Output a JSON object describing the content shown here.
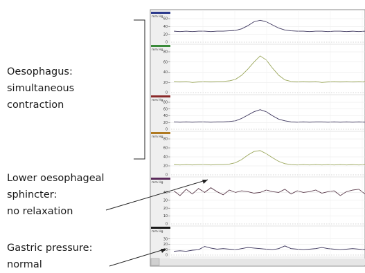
{
  "annotations": {
    "oesophagus": [
      "Oesophagus:",
      "simultaneous",
      "contraction"
    ],
    "les": [
      "Lower oesophageal",
      "sphincter:",
      "no relaxation"
    ],
    "gastric": [
      "Gastric pressure:",
      "normal"
    ]
  },
  "chart_data": {
    "type": "line",
    "title": "",
    "xlabel": "",
    "ylabel": "",
    "unit": "mm Hg",
    "panels": [
      {
        "name": "",
        "color": "#2c3a8c",
        "trace_color": "#39325a",
        "ylim": [
          0,
          60
        ],
        "ticks": [
          20,
          40,
          60
        ],
        "y": [
          28,
          27,
          28,
          27,
          28,
          28,
          27,
          28,
          28,
          29,
          30,
          34,
          42,
          52,
          56,
          52,
          44,
          36,
          31,
          29,
          28,
          28,
          27,
          28,
          28,
          27,
          28,
          28,
          27,
          28,
          27,
          28
        ]
      },
      {
        "name": "",
        "color": "#3a8a3a",
        "trace_color": "#9aa65a",
        "ylim": [
          0,
          80
        ],
        "ticks": [
          20,
          40,
          60,
          80
        ],
        "y": [
          22,
          21,
          22,
          20,
          21,
          22,
          21,
          22,
          22,
          23,
          26,
          34,
          46,
          60,
          72,
          64,
          48,
          34,
          25,
          22,
          21,
          22,
          21,
          22,
          20,
          21,
          22,
          21,
          22,
          21,
          22,
          21
        ]
      },
      {
        "name": "",
        "color": "#8a2a2a",
        "trace_color": "#39325a",
        "ylim": [
          0,
          80
        ],
        "ticks": [
          20,
          40,
          60,
          80
        ],
        "y": [
          22,
          21,
          22,
          21,
          22,
          22,
          21,
          22,
          22,
          23,
          25,
          32,
          42,
          52,
          58,
          52,
          40,
          30,
          25,
          22,
          21,
          22,
          21,
          22,
          22,
          21,
          22,
          21,
          22,
          21,
          22,
          21
        ]
      },
      {
        "name": "",
        "color": "#b07a22",
        "trace_color": "#9aa65a",
        "ylim": [
          0,
          80
        ],
        "ticks": [
          20,
          40,
          60,
          80
        ],
        "y": [
          23,
          22,
          23,
          22,
          23,
          23,
          22,
          23,
          23,
          24,
          27,
          34,
          44,
          52,
          54,
          47,
          38,
          30,
          25,
          23,
          22,
          23,
          22,
          23,
          22,
          23,
          22,
          23,
          22,
          23,
          22,
          23
        ]
      },
      {
        "name": "",
        "color": "#5a2a5a",
        "trace_color": "#5a3a4a",
        "ylim": [
          0,
          50
        ],
        "ticks": [
          10,
          20,
          30,
          40
        ],
        "y": [
          42,
          36,
          44,
          38,
          45,
          40,
          46,
          41,
          37,
          43,
          40,
          42,
          41,
          39,
          40,
          43,
          41,
          40,
          44,
          38,
          42,
          40,
          41,
          43,
          39,
          41,
          42,
          36,
          41,
          43,
          44,
          38
        ]
      },
      {
        "name": "",
        "color": "#1a1a1a",
        "trace_color": "#39325a",
        "ylim": [
          0,
          40
        ],
        "ticks": [
          10,
          20,
          30
        ],
        "y": [
          7,
          8,
          7,
          9,
          10,
          16,
          13,
          11,
          12,
          11,
          10,
          12,
          14,
          13,
          12,
          11,
          10,
          12,
          17,
          12,
          11,
          10,
          11,
          12,
          14,
          12,
          11,
          10,
          11,
          12,
          11,
          10
        ]
      }
    ]
  }
}
